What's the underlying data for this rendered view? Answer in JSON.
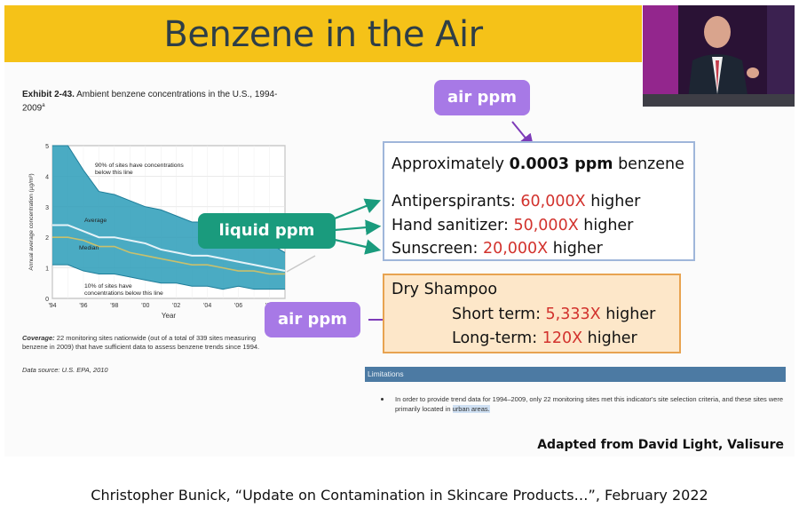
{
  "slide": {
    "title": "Benzene in the Air",
    "exhibit_label": "Exhibit 2-43.",
    "exhibit_text": "Ambient benzene concentrations in the U.S., 1994-2009",
    "exhibit_superscript": "a",
    "coverage_label": "Coverage:",
    "coverage_text": "22 monitoring sites nationwide (out of a total of 339 sites measuring benzene in 2009) that have sufficient data to assess benzene trends since 1994.",
    "data_source": "Data source: U.S. EPA, 2010",
    "credit": "Adapted from David Light, Valisure"
  },
  "callouts": {
    "air_ppm_top": "air ppm",
    "liquid_ppm": "liquid ppm",
    "air_ppm_bottom": "air ppm"
  },
  "info_box": {
    "line1_prefix": "Approximately ",
    "line1_value": "0.0003 ppm",
    "line1_suffix": " benzene",
    "items": [
      {
        "label": "Antiperspirants: ",
        "value": "60,000X",
        "suffix": " higher"
      },
      {
        "label": "Hand sanitizer: ",
        "value": "50,000X",
        "suffix": " higher"
      },
      {
        "label": "Sunscreen: ",
        "value": "20,000X",
        "suffix": " higher"
      }
    ]
  },
  "shampoo_box": {
    "title": "Dry Shampoo",
    "items": [
      {
        "label": "Short term: ",
        "value": "5,333X",
        "suffix": " higher"
      },
      {
        "label": "Long-term: ",
        "value": "120X",
        "suffix": " higher"
      }
    ]
  },
  "limitations": {
    "header": "Limitations",
    "text_before": "In order to provide trend data for 1994–2009, only 22 monitoring sites met this indicator's site selection criteria, and these sites were primarily located in ",
    "highlight": "urban areas.",
    "text_after": ""
  },
  "citation": "Christopher Bunick, “Update on Contamination in Skincare Products…”, February 2022",
  "colors": {
    "title_bar": "#f5c218",
    "band": "#2a9cb8",
    "red_value": "#d2322d",
    "purple": "#a779e6",
    "green": "#1a9b7d"
  },
  "chart_data": {
    "type": "area",
    "title": "",
    "xlabel": "Year",
    "ylabel": "Annual average concentration (µg/m³)",
    "ylim": [
      0,
      5
    ],
    "xlim": [
      1994,
      2009
    ],
    "x": [
      1994,
      1995,
      1996,
      1997,
      1998,
      1999,
      2000,
      2001,
      2002,
      2003,
      2004,
      2005,
      2006,
      2007,
      2008,
      2009
    ],
    "x_ticks": [
      "'94",
      "'96",
      "'98",
      "'00",
      "'02",
      "'04",
      "'06",
      "'08"
    ],
    "y_ticks": [
      "0",
      "1",
      "2",
      "3",
      "4",
      "5"
    ],
    "series": [
      {
        "name": "90% of sites have concentrations below this line",
        "values": [
          5.0,
          5.0,
          4.2,
          3.5,
          3.4,
          3.2,
          3.0,
          2.9,
          2.7,
          2.5,
          2.5,
          2.2,
          2.1,
          2.0,
          1.8,
          1.5
        ]
      },
      {
        "name": "Average",
        "values": [
          2.4,
          2.4,
          2.2,
          2.0,
          2.0,
          1.9,
          1.8,
          1.6,
          1.5,
          1.4,
          1.4,
          1.3,
          1.2,
          1.1,
          1.0,
          0.9
        ]
      },
      {
        "name": "Median",
        "values": [
          2.0,
          2.0,
          1.9,
          1.7,
          1.7,
          1.5,
          1.4,
          1.3,
          1.2,
          1.1,
          1.1,
          1.0,
          0.9,
          0.9,
          0.8,
          0.8
        ]
      },
      {
        "name": "10% of sites have concentrations below this line",
        "values": [
          1.1,
          1.1,
          0.9,
          0.8,
          0.8,
          0.7,
          0.6,
          0.5,
          0.5,
          0.4,
          0.4,
          0.3,
          0.4,
          0.3,
          0.3,
          0.3
        ]
      }
    ],
    "annotations": {
      "top": "90% of sites have concentrations below this line",
      "average": "Average",
      "median": "Median",
      "bottom": "10% of sites have concentrations below this line"
    },
    "grid": true
  }
}
